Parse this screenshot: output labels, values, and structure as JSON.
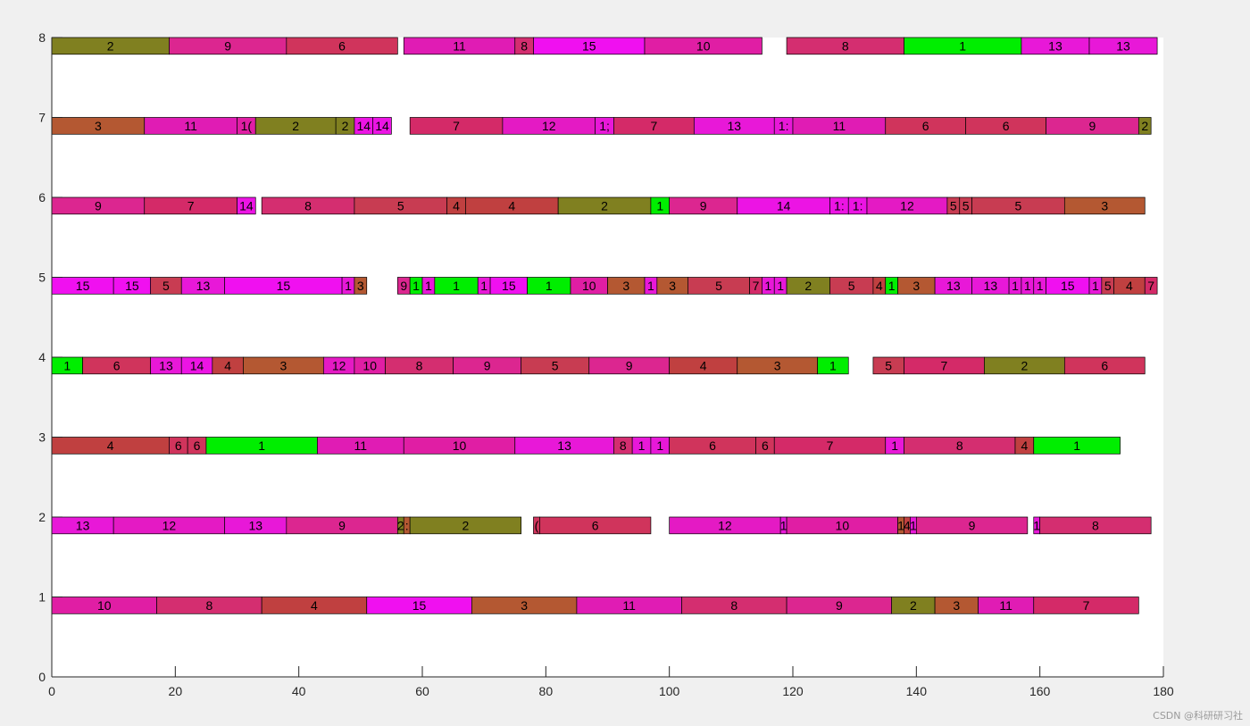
{
  "chart_data": {
    "type": "gantt",
    "xlim": [
      0,
      180
    ],
    "ylim": [
      0,
      8
    ],
    "xticks": [
      "0",
      "20",
      "40",
      "60",
      "80",
      "100",
      "120",
      "140",
      "160",
      "180"
    ],
    "yticks": [
      "0",
      "1",
      "2",
      "3",
      "4",
      "5",
      "6",
      "7",
      "8"
    ],
    "job_colors": {
      "1": "#00ee00",
      "2": "#808020",
      "3": "#b45832",
      "4": "#c04040",
      "5": "#c83c52",
      "6": "#d0345c",
      "7": "#d42a68",
      "8": "#d42e70",
      "9": "#dc2690",
      "10": "#e01ea4",
      "11": "#e01cb4",
      "12": "#e41ac4",
      "13": "#e818d8",
      "14": "#ec14e4",
      "15": "#f010f0"
    },
    "machines": [
      {
        "machine": 8,
        "ops": [
          {
            "job": "2",
            "start": 0,
            "end": 19,
            "label": "2"
          },
          {
            "job": "9",
            "start": 19,
            "end": 38,
            "label": "9"
          },
          {
            "job": "6",
            "start": 38,
            "end": 56,
            "label": "6"
          },
          {
            "job": "11",
            "start": 57,
            "end": 75,
            "label": "11"
          },
          {
            "job": "8",
            "start": 75,
            "end": 78,
            "label": "8"
          },
          {
            "job": "15",
            "start": 78,
            "end": 96,
            "label": "15"
          },
          {
            "job": "10",
            "start": 96,
            "end": 115,
            "label": "10"
          },
          {
            "job": "8",
            "start": 119,
            "end": 138,
            "label": "8"
          },
          {
            "job": "1",
            "start": 138,
            "end": 157,
            "label": "1"
          },
          {
            "job": "13",
            "start": 157,
            "end": 168,
            "label": "13"
          },
          {
            "job": "13",
            "start": 168,
            "end": 179,
            "label": "13"
          }
        ]
      },
      {
        "machine": 7,
        "ops": [
          {
            "job": "3",
            "start": 0,
            "end": 15,
            "label": "3"
          },
          {
            "job": "11",
            "start": 15,
            "end": 30,
            "label": "11"
          },
          {
            "job": "10",
            "start": 30,
            "end": 33,
            "label": "1("
          },
          {
            "job": "2",
            "start": 33,
            "end": 46,
            "label": "2"
          },
          {
            "job": "2",
            "start": 46,
            "end": 49,
            "label": "2"
          },
          {
            "job": "14",
            "start": 49,
            "end": 52,
            "label": "14"
          },
          {
            "job": "14",
            "start": 52,
            "end": 55,
            "label": "14"
          },
          {
            "job": "7",
            "start": 58,
            "end": 73,
            "label": "7"
          },
          {
            "job": "12",
            "start": 73,
            "end": 88,
            "label": "12"
          },
          {
            "job": "13",
            "start": 88,
            "end": 91,
            "label": "1;"
          },
          {
            "job": "7",
            "start": 91,
            "end": 104,
            "label": "7"
          },
          {
            "job": "13",
            "start": 104,
            "end": 117,
            "label": "13"
          },
          {
            "job": "13",
            "start": 117,
            "end": 120,
            "label": "1:"
          },
          {
            "job": "11",
            "start": 120,
            "end": 135,
            "label": "11"
          },
          {
            "job": "6",
            "start": 135,
            "end": 148,
            "label": "6"
          },
          {
            "job": "6",
            "start": 148,
            "end": 161,
            "label": "6"
          },
          {
            "job": "9",
            "start": 161,
            "end": 176,
            "label": "9"
          },
          {
            "job": "2",
            "start": 176,
            "end": 178,
            "label": "2"
          }
        ]
      },
      {
        "machine": 6,
        "ops": [
          {
            "job": "9",
            "start": 0,
            "end": 15,
            "label": "9"
          },
          {
            "job": "7",
            "start": 15,
            "end": 30,
            "label": "7"
          },
          {
            "job": "14",
            "start": 30,
            "end": 33,
            "label": "14"
          },
          {
            "job": "8",
            "start": 34,
            "end": 49,
            "label": "8"
          },
          {
            "job": "5",
            "start": 49,
            "end": 64,
            "label": "5"
          },
          {
            "job": "4",
            "start": 64,
            "end": 67,
            "label": "4"
          },
          {
            "job": "4",
            "start": 67,
            "end": 82,
            "label": "4"
          },
          {
            "job": "2",
            "start": 82,
            "end": 97,
            "label": "2"
          },
          {
            "job": "1",
            "start": 97,
            "end": 100,
            "label": "1"
          },
          {
            "job": "9",
            "start": 100,
            "end": 111,
            "label": "9"
          },
          {
            "job": "14",
            "start": 111,
            "end": 126,
            "label": "14"
          },
          {
            "job": "14",
            "start": 126,
            "end": 129,
            "label": "1:"
          },
          {
            "job": "14",
            "start": 129,
            "end": 132,
            "label": "1:"
          },
          {
            "job": "12",
            "start": 132,
            "end": 145,
            "label": "12"
          },
          {
            "job": "5",
            "start": 145,
            "end": 147,
            "label": "5"
          },
          {
            "job": "5",
            "start": 147,
            "end": 149,
            "label": "5"
          },
          {
            "job": "5",
            "start": 149,
            "end": 164,
            "label": "5"
          },
          {
            "job": "3",
            "start": 164,
            "end": 177,
            "label": "3"
          }
        ]
      },
      {
        "machine": 5,
        "ops": [
          {
            "job": "15",
            "start": 0,
            "end": 10,
            "label": "15"
          },
          {
            "job": "15",
            "start": 10,
            "end": 16,
            "label": "15"
          },
          {
            "job": "5",
            "start": 16,
            "end": 21,
            "label": "5"
          },
          {
            "job": "13",
            "start": 21,
            "end": 28,
            "label": "13"
          },
          {
            "job": "15",
            "start": 28,
            "end": 47,
            "label": "15"
          },
          {
            "job": "13",
            "start": 47,
            "end": 49,
            "label": "1"
          },
          {
            "job": "3",
            "start": 49,
            "end": 51,
            "label": "3"
          },
          {
            "job": "9",
            "start": 56,
            "end": 58,
            "label": "9"
          },
          {
            "job": "1",
            "start": 58,
            "end": 60,
            "label": "1"
          },
          {
            "job": "13",
            "start": 60,
            "end": 62,
            "label": "1"
          },
          {
            "job": "1",
            "start": 62,
            "end": 69,
            "label": "1"
          },
          {
            "job": "13",
            "start": 69,
            "end": 71,
            "label": "1"
          },
          {
            "job": "15",
            "start": 71,
            "end": 77,
            "label": "15"
          },
          {
            "job": "1",
            "start": 77,
            "end": 84,
            "label": "1"
          },
          {
            "job": "10",
            "start": 84,
            "end": 90,
            "label": "10"
          },
          {
            "job": "3",
            "start": 90,
            "end": 96,
            "label": "3"
          },
          {
            "job": "13",
            "start": 96,
            "end": 98,
            "label": "1"
          },
          {
            "job": "3",
            "start": 98,
            "end": 103,
            "label": "3"
          },
          {
            "job": "5",
            "start": 103,
            "end": 113,
            "label": "5"
          },
          {
            "job": "7",
            "start": 113,
            "end": 115,
            "label": "7"
          },
          {
            "job": "13",
            "start": 115,
            "end": 117,
            "label": "1"
          },
          {
            "job": "13",
            "start": 117,
            "end": 119,
            "label": "1"
          },
          {
            "job": "2",
            "start": 119,
            "end": 126,
            "label": "2"
          },
          {
            "job": "5",
            "start": 126,
            "end": 133,
            "label": "5"
          },
          {
            "job": "4",
            "start": 133,
            "end": 135,
            "label": "4"
          },
          {
            "job": "1",
            "start": 135,
            "end": 137,
            "label": "1"
          },
          {
            "job": "3",
            "start": 137,
            "end": 143,
            "label": "3"
          },
          {
            "job": "13",
            "start": 143,
            "end": 149,
            "label": "13"
          },
          {
            "job": "13",
            "start": 149,
            "end": 155,
            "label": "13"
          },
          {
            "job": "13",
            "start": 155,
            "end": 157,
            "label": "1"
          },
          {
            "job": "13",
            "start": 157,
            "end": 159,
            "label": "1"
          },
          {
            "job": "13",
            "start": 159,
            "end": 161,
            "label": "1"
          },
          {
            "job": "15",
            "start": 161,
            "end": 168,
            "label": "15"
          },
          {
            "job": "13",
            "start": 168,
            "end": 170,
            "label": "1"
          },
          {
            "job": "5",
            "start": 170,
            "end": 172,
            "label": "5"
          },
          {
            "job": "4",
            "start": 172,
            "end": 177,
            "label": "4"
          },
          {
            "job": "7",
            "start": 177,
            "end": 179,
            "label": "7"
          }
        ]
      },
      {
        "machine": 4,
        "ops": [
          {
            "job": "1",
            "start": 0,
            "end": 5,
            "label": "1"
          },
          {
            "job": "6",
            "start": 5,
            "end": 16,
            "label": "6"
          },
          {
            "job": "13",
            "start": 16,
            "end": 21,
            "label": "13"
          },
          {
            "job": "14",
            "start": 21,
            "end": 26,
            "label": "14"
          },
          {
            "job": "4",
            "start": 26,
            "end": 31,
            "label": "4"
          },
          {
            "job": "3",
            "start": 31,
            "end": 44,
            "label": "3"
          },
          {
            "job": "12",
            "start": 44,
            "end": 49,
            "label": "12"
          },
          {
            "job": "10",
            "start": 49,
            "end": 54,
            "label": "10"
          },
          {
            "job": "8",
            "start": 54,
            "end": 65,
            "label": "8"
          },
          {
            "job": "9",
            "start": 65,
            "end": 76,
            "label": "9"
          },
          {
            "job": "5",
            "start": 76,
            "end": 87,
            "label": "5"
          },
          {
            "job": "9",
            "start": 87,
            "end": 100,
            "label": "9"
          },
          {
            "job": "4",
            "start": 100,
            "end": 111,
            "label": "4"
          },
          {
            "job": "3",
            "start": 111,
            "end": 124,
            "label": "3"
          },
          {
            "job": "1",
            "start": 124,
            "end": 129,
            "label": "1"
          },
          {
            "job": "5",
            "start": 133,
            "end": 138,
            "label": "5"
          },
          {
            "job": "7",
            "start": 138,
            "end": 151,
            "label": "7"
          },
          {
            "job": "2",
            "start": 151,
            "end": 164,
            "label": "2"
          },
          {
            "job": "6",
            "start": 164,
            "end": 177,
            "label": "6"
          }
        ]
      },
      {
        "machine": 3,
        "ops": [
          {
            "job": "4",
            "start": 0,
            "end": 19,
            "label": "4"
          },
          {
            "job": "6",
            "start": 19,
            "end": 22,
            "label": "6"
          },
          {
            "job": "6",
            "start": 22,
            "end": 25,
            "label": "6"
          },
          {
            "job": "1",
            "start": 25,
            "end": 43,
            "label": "1"
          },
          {
            "job": "11",
            "start": 43,
            "end": 57,
            "label": "11"
          },
          {
            "job": "10",
            "start": 57,
            "end": 75,
            "label": "10"
          },
          {
            "job": "13",
            "start": 75,
            "end": 91,
            "label": "13"
          },
          {
            "job": "8",
            "start": 91,
            "end": 94,
            "label": "8"
          },
          {
            "job": "13",
            "start": 94,
            "end": 97,
            "label": "1"
          },
          {
            "job": "13",
            "start": 97,
            "end": 100,
            "label": "1"
          },
          {
            "job": "6",
            "start": 100,
            "end": 114,
            "label": "6"
          },
          {
            "job": "6",
            "start": 114,
            "end": 117,
            "label": "6"
          },
          {
            "job": "7",
            "start": 117,
            "end": 135,
            "label": "7"
          },
          {
            "job": "13",
            "start": 135,
            "end": 138,
            "label": "1"
          },
          {
            "job": "8",
            "start": 138,
            "end": 156,
            "label": "8"
          },
          {
            "job": "4",
            "start": 156,
            "end": 159,
            "label": "4"
          },
          {
            "job": "1",
            "start": 159,
            "end": 173,
            "label": "1"
          }
        ]
      },
      {
        "machine": 2,
        "ops": [
          {
            "job": "13",
            "start": 0,
            "end": 10,
            "label": "13"
          },
          {
            "job": "12",
            "start": 10,
            "end": 28,
            "label": "12"
          },
          {
            "job": "13",
            "start": 28,
            "end": 38,
            "label": "13"
          },
          {
            "job": "9",
            "start": 38,
            "end": 56,
            "label": "9"
          },
          {
            "job": "2",
            "start": 56,
            "end": 57,
            "label": "2"
          },
          {
            "job": "3",
            "start": 57,
            "end": 58,
            "label": ":"
          },
          {
            "job": "2",
            "start": 58,
            "end": 76,
            "label": "2"
          },
          {
            "job": "6",
            "start": 78,
            "end": 79,
            "label": "("
          },
          {
            "job": "6",
            "start": 79,
            "end": 97,
            "label": "6"
          },
          {
            "job": "12",
            "start": 100,
            "end": 118,
            "label": "12"
          },
          {
            "job": "13",
            "start": 118,
            "end": 119,
            "label": "1"
          },
          {
            "job": "10",
            "start": 119,
            "end": 137,
            "label": "10"
          },
          {
            "job": "3",
            "start": 137,
            "end": 138,
            "label": "1"
          },
          {
            "job": "4",
            "start": 138,
            "end": 139,
            "label": "4"
          },
          {
            "job": "13",
            "start": 139,
            "end": 140,
            "label": "1"
          },
          {
            "job": "9",
            "start": 140,
            "end": 158,
            "label": "9"
          },
          {
            "job": "13",
            "start": 159,
            "end": 160,
            "label": "1"
          },
          {
            "job": "8",
            "start": 160,
            "end": 178,
            "label": "8"
          }
        ]
      },
      {
        "machine": 1,
        "ops": [
          {
            "job": "10",
            "start": 0,
            "end": 17,
            "label": "10"
          },
          {
            "job": "8",
            "start": 17,
            "end": 34,
            "label": "8"
          },
          {
            "job": "4",
            "start": 34,
            "end": 51,
            "label": "4"
          },
          {
            "job": "15",
            "start": 51,
            "end": 68,
            "label": "15"
          },
          {
            "job": "3",
            "start": 68,
            "end": 85,
            "label": "3"
          },
          {
            "job": "11",
            "start": 85,
            "end": 102,
            "label": "11"
          },
          {
            "job": "8",
            "start": 102,
            "end": 119,
            "label": "8"
          },
          {
            "job": "9",
            "start": 119,
            "end": 136,
            "label": "9"
          },
          {
            "job": "2",
            "start": 136,
            "end": 143,
            "label": "2"
          },
          {
            "job": "3",
            "start": 143,
            "end": 150,
            "label": "3"
          },
          {
            "job": "11",
            "start": 150,
            "end": 159,
            "label": "11"
          },
          {
            "job": "7",
            "start": 159,
            "end": 176,
            "label": "7"
          }
        ]
      }
    ]
  },
  "watermark": "CSDN @科研研习社"
}
